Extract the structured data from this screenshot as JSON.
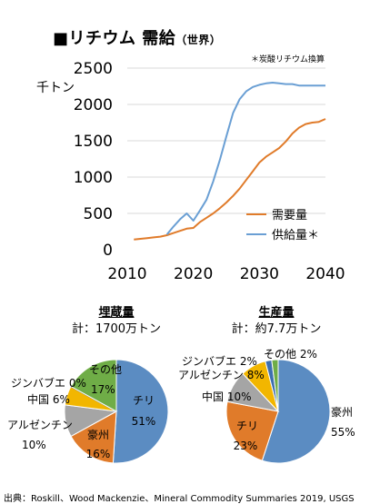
{
  "title": "■リチウム 需給",
  "title_sub": "（世界）",
  "note": "＊炭酸リチウム換算",
  "unit": "千トン",
  "chart_data": [
    {
      "type": "line",
      "x": [
        2011,
        2012,
        2013,
        2014,
        2015,
        2016,
        2017,
        2018,
        2019,
        2020,
        2021,
        2022,
        2023,
        2024,
        2025,
        2026,
        2027,
        2028,
        2029,
        2030,
        2031,
        2032,
        2033,
        2034,
        2035,
        2036,
        2037,
        2038,
        2039,
        2040
      ],
      "series": [
        {
          "name": "需要量",
          "color": "#E07B2A",
          "values": [
            140,
            150,
            160,
            170,
            180,
            200,
            230,
            260,
            290,
            300,
            380,
            440,
            500,
            570,
            650,
            740,
            840,
            960,
            1080,
            1200,
            1280,
            1340,
            1400,
            1490,
            1600,
            1680,
            1730,
            1750,
            1760,
            1800
          ]
        },
        {
          "name": "供給量＊",
          "color": "#6A9FD4",
          "values": [
            null,
            null,
            null,
            null,
            null,
            210,
            320,
            420,
            500,
            400,
            540,
            690,
            940,
            1230,
            1560,
            1880,
            2070,
            2180,
            2240,
            2270,
            2290,
            2300,
            2290,
            2280,
            2280,
            2260,
            2260,
            2260,
            2260,
            2260
          ]
        }
      ],
      "yticks": [
        0,
        500,
        1000,
        1500,
        2000,
        2500
      ],
      "xticks": [
        2010,
        2020,
        2030,
        2040
      ],
      "xlim": [
        2010,
        2040
      ],
      "ylim": [
        0,
        2500
      ],
      "legend": "bottom-right"
    },
    {
      "type": "pie",
      "title": "埋蔵量",
      "total": "計：1700万トン",
      "slices": [
        {
          "name": "チリ",
          "value": 51,
          "pct": "51%",
          "color": "#5B8CC2"
        },
        {
          "name": "豪州",
          "value": 16,
          "pct": "16%",
          "color": "#E07B2A"
        },
        {
          "name": "アルゼンチン",
          "value": 10,
          "pct": "10%",
          "color": "#A5A5A5"
        },
        {
          "name": "中国",
          "value": 6,
          "pct": "6%",
          "color": "#F2B600"
        },
        {
          "name": "ジンバブエ",
          "value": 0,
          "pct": "0%",
          "color": "#3E6FB0"
        },
        {
          "name": "その他",
          "value": 17,
          "pct": "17%",
          "color": "#6FAD47"
        }
      ]
    },
    {
      "type": "pie",
      "title": "生産量",
      "total": "計：約7.7万トン",
      "slices": [
        {
          "name": "豪州",
          "value": 55,
          "pct": "55%",
          "color": "#5B8CC2"
        },
        {
          "name": "チリ",
          "value": 23,
          "pct": "23%",
          "color": "#E07B2A"
        },
        {
          "name": "中国",
          "value": 10,
          "pct": "10%",
          "color": "#A5A5A5"
        },
        {
          "name": "アルゼンチン",
          "value": 8,
          "pct": "8%",
          "color": "#F2B600"
        },
        {
          "name": "ジンバブエ",
          "value": 2,
          "pct": "2%",
          "color": "#3E6FB0"
        },
        {
          "name": "その他",
          "value": 2,
          "pct": "2%",
          "color": "#6FAD47"
        }
      ]
    }
  ],
  "source": "出典：Roskill、Wood Mackenzie、Mineral Commodity Summaries 2019, USGS"
}
